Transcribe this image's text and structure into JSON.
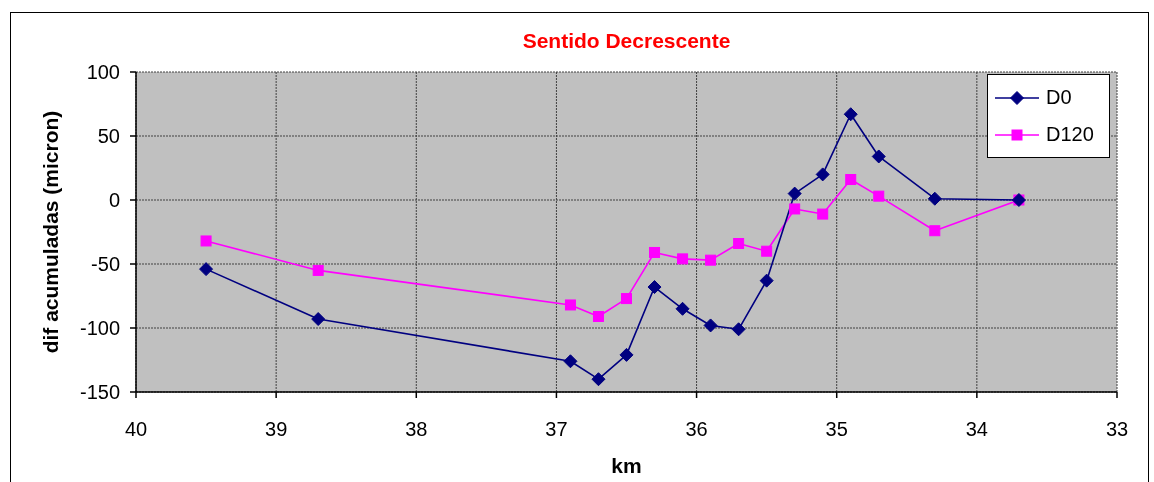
{
  "chart_data": {
    "type": "line",
    "title": "Sentido Decrescente",
    "xlabel": "km",
    "ylabel": "dif acumuladas (micron)",
    "x": [
      39.5,
      38.7,
      36.9,
      36.7,
      36.5,
      36.3,
      36.1,
      35.9,
      35.7,
      35.5,
      35.3,
      35.1,
      34.9,
      34.7,
      34.3,
      33.7
    ],
    "series": [
      {
        "name": "D0",
        "color": "#000080",
        "marker": "diamond",
        "values": [
          -54,
          -93,
          -126,
          -140,
          -121,
          -68,
          -85,
          -98,
          -101,
          -63,
          5,
          20,
          67,
          34,
          1,
          0
        ]
      },
      {
        "name": "D120",
        "color": "#ff00ff",
        "marker": "square",
        "values": [
          -32,
          -55,
          -82,
          -91,
          -77,
          -41,
          -46,
          -47,
          -34,
          -40,
          -7,
          -11,
          16,
          3,
          -24,
          0
        ]
      }
    ],
    "xlim": [
      40,
      33
    ],
    "xticks": [
      40,
      39,
      38,
      37,
      36,
      35,
      34,
      33
    ],
    "ylim": [
      -150,
      100
    ],
    "yticks": [
      -150,
      -100,
      -50,
      0,
      50,
      100
    ],
    "grid": true,
    "legend": "top right"
  }
}
